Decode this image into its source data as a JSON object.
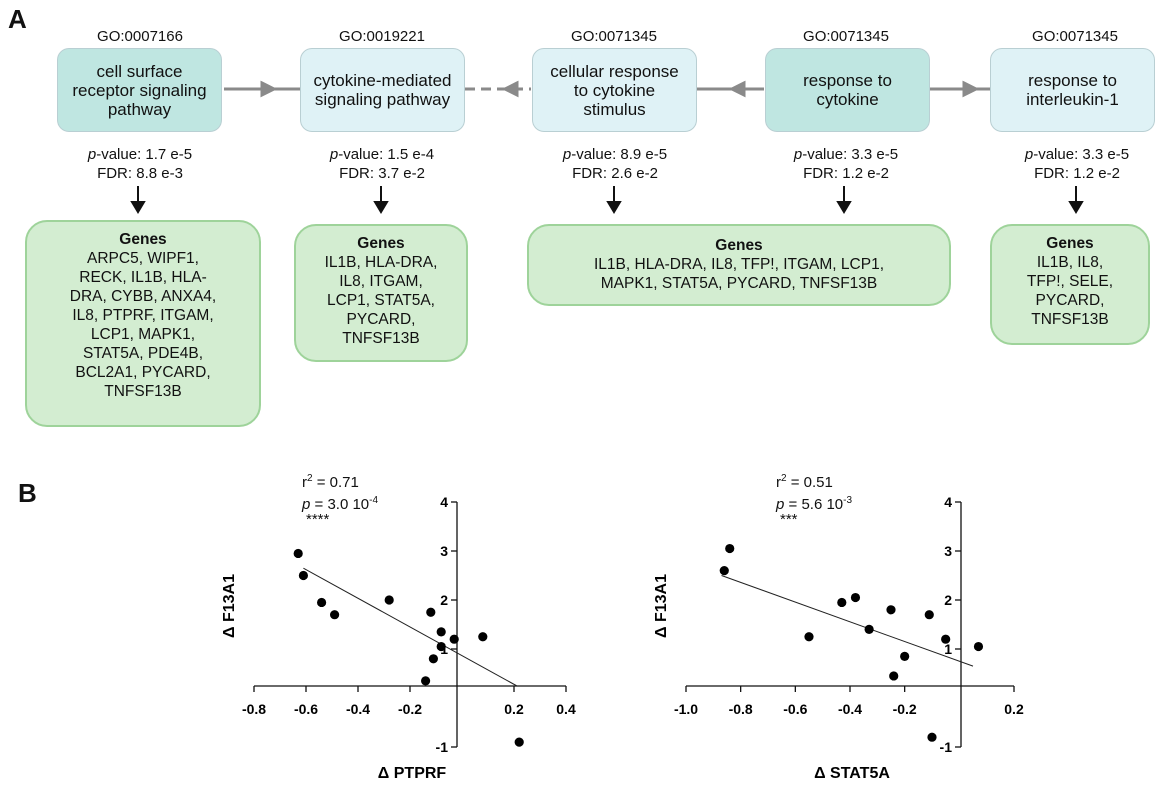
{
  "panel_a": {
    "letter": "A",
    "terms": [
      {
        "go_id": "GO:0007166",
        "name": "cell surface receptor signaling pathway",
        "p_label": "p",
        "p_value": "-value: 1.7 e-5",
        "fdr": "FDR: 8.8  e-3",
        "shade": "dark"
      },
      {
        "go_id": "GO:0019221",
        "name": "cytokine-mediated signaling pathway",
        "p_label": "p",
        "p_value": "-value: 1.5  e-4",
        "fdr": "FDR: 3.7 e-2",
        "shade": "light"
      },
      {
        "go_id": "GO:0071345",
        "name": "cellular response to cytokine stimulus",
        "p_label": "p",
        "p_value": "-value: 8.9 e-5",
        "fdr": "FDR: 2.6 e-2",
        "shade": "light"
      },
      {
        "go_id": "GO:0071345",
        "name": "response to cytokine",
        "p_label": "p",
        "p_value": "-value: 3.3 e-5",
        "fdr": "FDR: 1.2 e-2",
        "shade": "dark"
      },
      {
        "go_id": "GO:0071345",
        "name": "response to interleukin-1",
        "p_label": "p",
        "p_value": "-value: 3.3 e-5",
        "fdr": "FDR: 1.2 e-2",
        "shade": "light"
      }
    ],
    "gene_boxes": [
      {
        "title": "Genes",
        "lines": [
          "ARPC5, WIPF1,",
          "RECK, IL1B, HLA-",
          "DRA, CYBB, ANXA4,",
          "IL8, PTPRF, ITGAM,",
          "LCP1, MAPK1,",
          "STAT5A, PDE4B,",
          "BCL2A1, PYCARD,",
          "TNFSF13B"
        ]
      },
      {
        "title": "Genes",
        "lines": [
          "IL1B, HLA-DRA,",
          "IL8, ITGAM,",
          "LCP1, STAT5A,",
          "PYCARD,",
          "TNFSF13B"
        ]
      },
      {
        "title": "Genes",
        "lines": [
          "IL1B, HLA-DRA, IL8, TFP!, ITGAM, LCP1,",
          "MAPK1, STAT5A, PYCARD, TNFSF13B"
        ]
      },
      {
        "title": "Genes",
        "lines": [
          "IL1B, IL8,",
          "TFP!, SELE,",
          "PYCARD,",
          "TNFSF13B"
        ]
      }
    ]
  },
  "panel_b": {
    "letter": "B"
  },
  "chart_data": [
    {
      "type": "scatter",
      "title": "",
      "xlabel": "Δ PTPRF",
      "ylabel": "Δ F13A1",
      "xlim": [
        -0.8,
        0.4
      ],
      "ylim": [
        -1,
        4
      ],
      "xticks": [
        "-0.8",
        "-0.6",
        "-0.4",
        "-0.2",
        "0.2",
        "0.4"
      ],
      "yticks": [
        "-1",
        "1",
        "2",
        "3",
        "4"
      ],
      "r2_text": "r",
      "r2_sup": "2",
      "r2_value": " = 0.71",
      "p_label": "p",
      "p_value": " = 3.0 10",
      "p_exp": "-4",
      "stars": "****",
      "points": [
        {
          "x": -0.63,
          "y": 2.95
        },
        {
          "x": -0.61,
          "y": 2.5
        },
        {
          "x": -0.54,
          "y": 1.95
        },
        {
          "x": -0.49,
          "y": 1.7
        },
        {
          "x": -0.28,
          "y": 2.0
        },
        {
          "x": -0.14,
          "y": 0.35
        },
        {
          "x": -0.12,
          "y": 1.75
        },
        {
          "x": -0.11,
          "y": 0.8
        },
        {
          "x": -0.08,
          "y": 1.35
        },
        {
          "x": -0.08,
          "y": 1.05
        },
        {
          "x": -0.03,
          "y": 1.2
        },
        {
          "x": 0.08,
          "y": 1.25
        },
        {
          "x": 0.22,
          "y": -0.9
        }
      ],
      "fit": {
        "x": [
          -0.61,
          0.21
        ],
        "y": [
          2.65,
          0.25
        ]
      }
    },
    {
      "type": "scatter",
      "title": "",
      "xlabel": "Δ STAT5A",
      "ylabel": "Δ F13A1",
      "xlim": [
        -1.0,
        0.2
      ],
      "ylim": [
        -1,
        4
      ],
      "xticks": [
        "-1.0",
        "-0.8",
        "-0.6",
        "-0.4",
        "-0.2",
        "0.2"
      ],
      "yticks": [
        "-1",
        "1",
        "2",
        "3",
        "4"
      ],
      "r2_text": "r",
      "r2_sup": "2",
      "r2_value": " = 0.51",
      "p_label": "p",
      "p_value": " = 5.6 10",
      "p_exp": "-3",
      "stars": "***",
      "points": [
        {
          "x": -0.86,
          "y": 2.6
        },
        {
          "x": -0.84,
          "y": 3.05
        },
        {
          "x": -0.55,
          "y": 1.25
        },
        {
          "x": -0.43,
          "y": 1.95
        },
        {
          "x": -0.38,
          "y": 2.05
        },
        {
          "x": -0.33,
          "y": 1.4
        },
        {
          "x": -0.25,
          "y": 1.8
        },
        {
          "x": -0.24,
          "y": 0.45
        },
        {
          "x": -0.2,
          "y": 0.85
        },
        {
          "x": -0.11,
          "y": 1.7
        },
        {
          "x": -0.1,
          "y": -0.8
        },
        {
          "x": -0.05,
          "y": 1.2
        },
        {
          "x": 0.07,
          "y": 1.05
        }
      ],
      "fit": {
        "x": [
          -0.87,
          0.05
        ],
        "y": [
          2.5,
          0.65
        ]
      }
    }
  ]
}
